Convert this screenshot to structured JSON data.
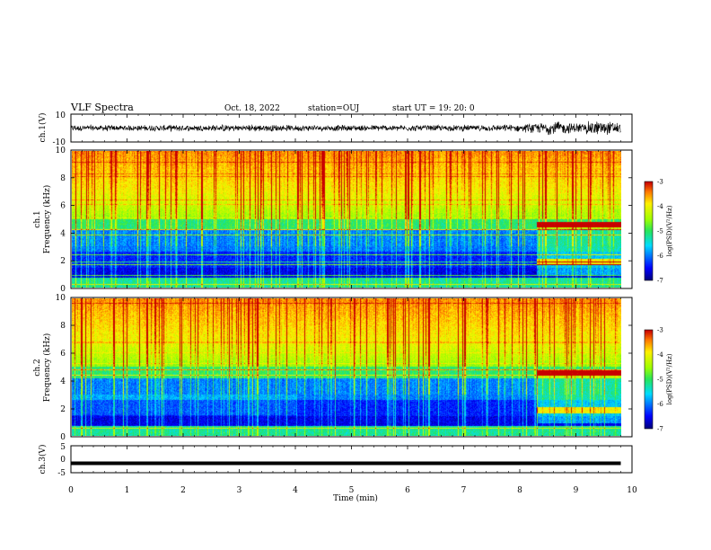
{
  "header": {
    "title": "VLF Spectra",
    "date": "Oct. 18, 2022",
    "station": "station=OUJ",
    "start": "start UT =  19: 20: 0"
  },
  "chart_data": [
    {
      "type": "line",
      "panel": "ch1-waveform",
      "ylabel": "ch.1(V)",
      "ylim": [
        -10,
        10
      ],
      "yticks": [
        "10",
        "-10"
      ],
      "xlim": [
        0,
        10
      ],
      "x": [
        0,
        1,
        2,
        3,
        4,
        5,
        6,
        7,
        8,
        8.7,
        9.0,
        9.3,
        9.5,
        9.8
      ],
      "envelope_amplitude": [
        2.5,
        2.5,
        2.5,
        3,
        2.5,
        2.5,
        2.5,
        2.5,
        2.8,
        6,
        4,
        6,
        7,
        4
      ]
    },
    {
      "type": "heatmap",
      "panel": "ch1-spectrogram",
      "ylabel_line1": "ch.1",
      "ylabel_line2": "Frequency (kHz)",
      "xlim": [
        0,
        10
      ],
      "ylim": [
        0,
        10
      ],
      "yticks": [
        "0",
        "2",
        "4",
        "6",
        "8",
        "10"
      ],
      "colorbar": {
        "min": -7,
        "max": -3,
        "ticks": [
          "-3",
          "-4",
          "-5",
          "-6",
          "-7"
        ],
        "label": "log(PSD)(V²/Hz)"
      }
    },
    {
      "type": "heatmap",
      "panel": "ch2-spectrogram",
      "ylabel_line1": "ch.2",
      "ylabel_line2": "Frequency (kHz)",
      "xlim": [
        0,
        10
      ],
      "ylim": [
        0,
        10
      ],
      "yticks": [
        "0",
        "2",
        "4",
        "6",
        "8",
        "10"
      ],
      "colorbar": {
        "min": -7,
        "max": -3,
        "ticks": [
          "-3",
          "-4",
          "-5",
          "-6",
          "-7"
        ],
        "label": "log(PSD)(V²/Hz)"
      }
    },
    {
      "type": "line",
      "panel": "ch3-waveform",
      "ylabel": "ch.3(V)",
      "ylim": [
        -5,
        5
      ],
      "yticks": [
        "5",
        "0",
        "-5"
      ],
      "xlim": [
        0,
        9.8
      ],
      "x": [
        0,
        9.8
      ],
      "y": [
        -1.5,
        -1.5
      ]
    }
  ],
  "xaxis": {
    "label": "Time (min)",
    "ticks": [
      "0",
      "1",
      "2",
      "3",
      "4",
      "5",
      "6",
      "7",
      "8",
      "9",
      "10"
    ]
  }
}
